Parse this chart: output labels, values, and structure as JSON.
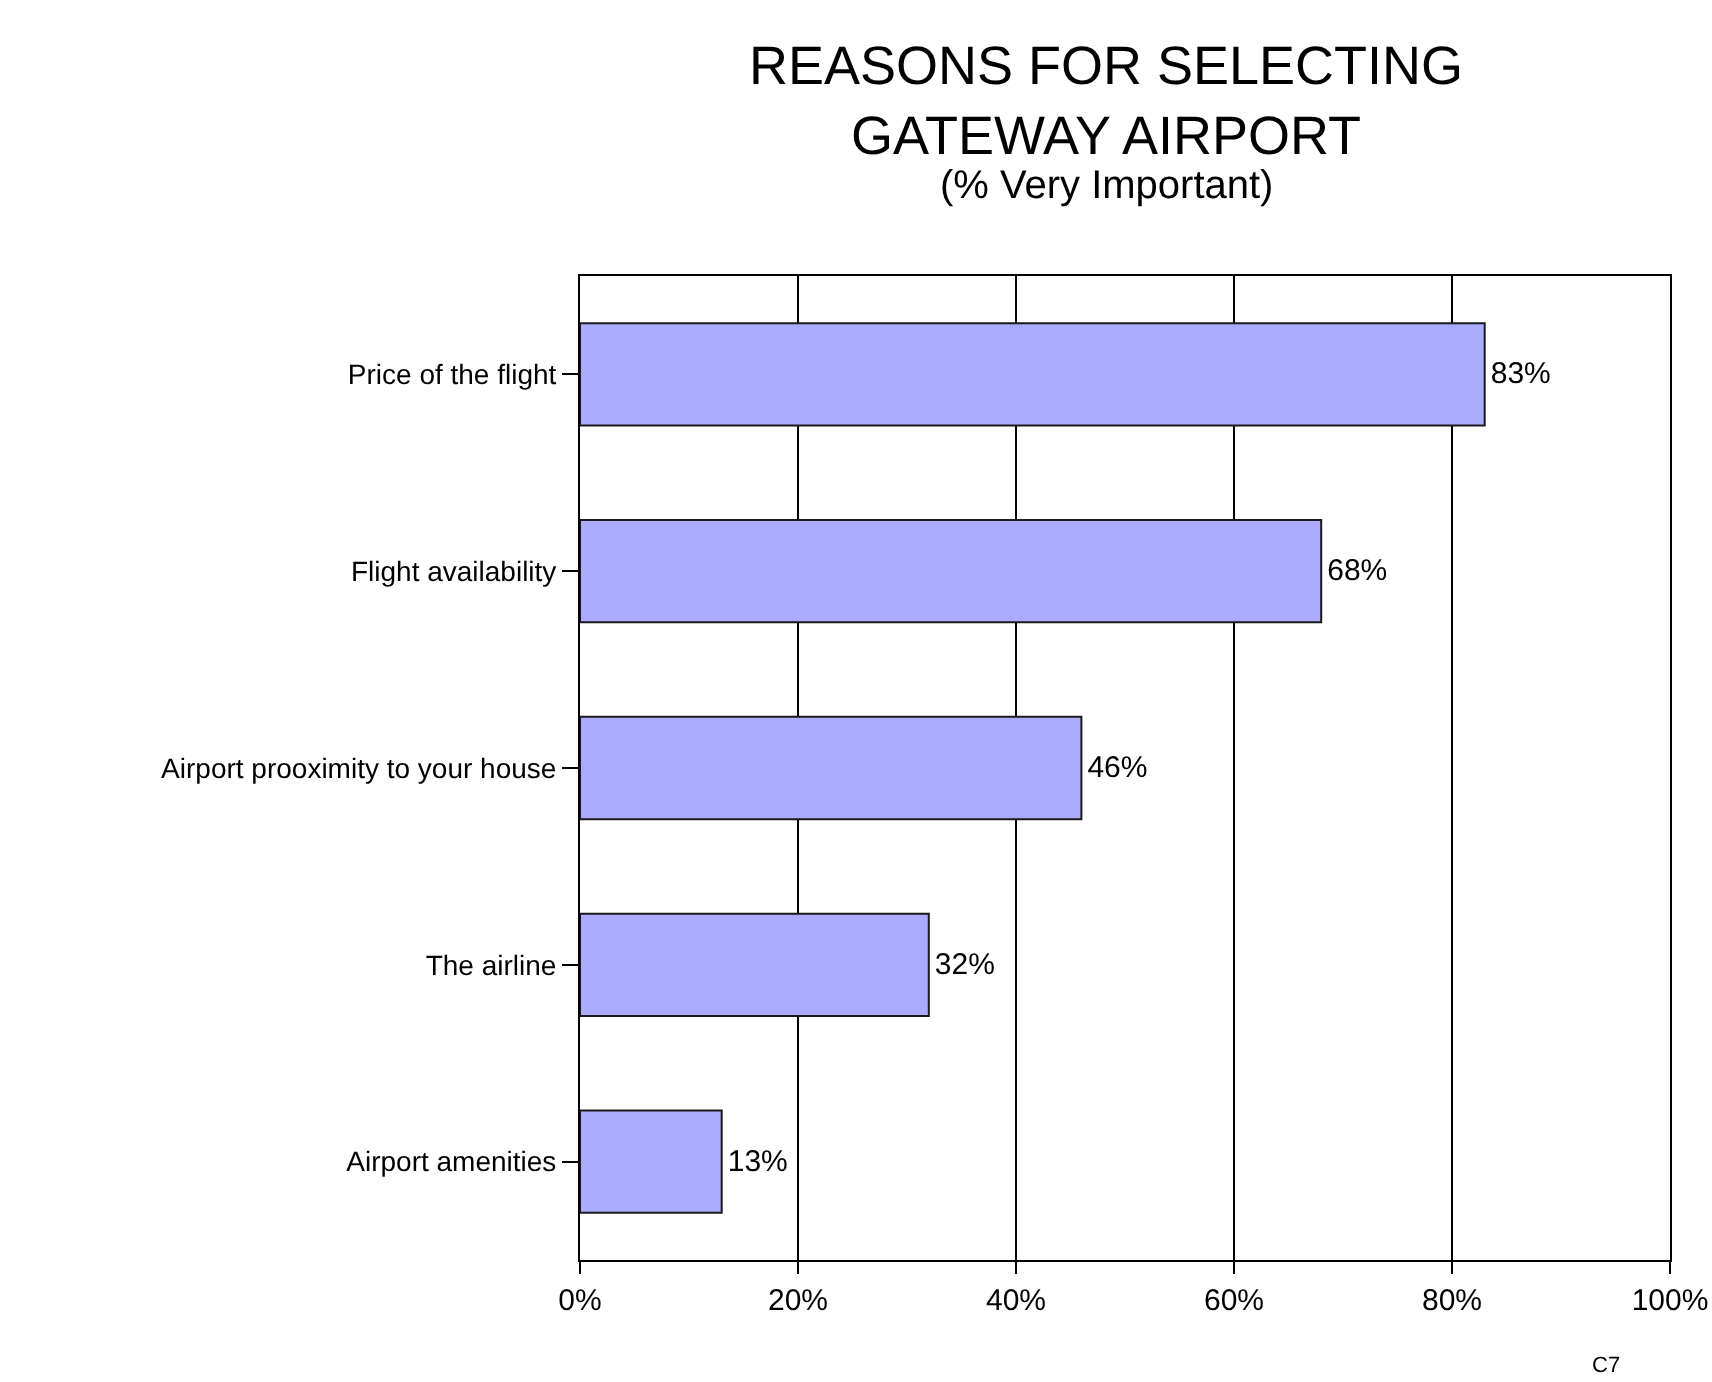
{
  "chart_data": {
    "type": "bar",
    "orientation": "horizontal",
    "title": "REASONS FOR SELECTING\nGATEWAY AIRPORT",
    "subtitle": "(% Very Important)",
    "categories": [
      "Price of the flight",
      "Flight availability",
      "Airport prooximity to your house",
      "The airline",
      "Airport amenities"
    ],
    "values": [
      83,
      68,
      46,
      32,
      13
    ],
    "value_labels": [
      "83%",
      "68%",
      "46%",
      "32%",
      "13%"
    ],
    "color": "#aaaaff",
    "xlim": [
      0,
      100
    ],
    "xticks": [
      {
        "value": 0,
        "label": "0%"
      },
      {
        "value": 20,
        "label": "20%"
      },
      {
        "value": 40,
        "label": "40%"
      },
      {
        "value": 60,
        "label": "60%"
      },
      {
        "value": 80,
        "label": "80%"
      },
      {
        "value": 100,
        "label": "100%"
      }
    ],
    "grid": "x",
    "annotations": [
      "C7"
    ]
  }
}
